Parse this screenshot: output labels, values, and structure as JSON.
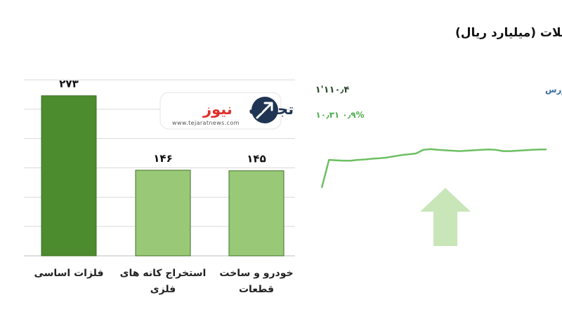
{
  "chart_title": "صنایع فرابورس بیشترین ارزش معاملات  (میلیارد ریال)",
  "logo": {
    "name_part1": "تجارت",
    "name_part2": "نیوز",
    "url": "www.tejaratnews.com",
    "colors": {
      "dark": "#1f3553",
      "accent": "#e0302a"
    }
  },
  "chart_data": {
    "type": "bar",
    "categories": [
      "فلزات اساسی",
      "استخراج کانه های فلزی",
      "خودرو و ساخت قطعات"
    ],
    "category_lines": [
      [
        "فلزات اساسی"
      ],
      [
        "استخراج کانه های",
        "فلزی"
      ],
      [
        "خودرو و ساخت",
        "قطعات"
      ]
    ],
    "values": [
      273,
      146,
      145
    ],
    "value_labels": [
      "۲۷۳",
      "۱۴۶",
      "۱۴۵"
    ],
    "ylim": [
      0,
      300
    ],
    "grid": true,
    "colors": {
      "first_bar": "#4d8b2f",
      "other_bars": "#99c977",
      "bar_stroke": "#3f6f26",
      "grid": "#d9d9d9"
    }
  },
  "market": {
    "title": "کل فرابورس",
    "index_value": "۱'۱۱۰٫۴",
    "change_text": "۱۰٫۳۱  ۰٫۹%",
    "trend": "up",
    "sparkline": [
      0.0,
      0.7,
      0.69,
      0.68,
      0.68,
      0.7,
      0.71,
      0.73,
      0.74,
      0.76,
      0.79,
      0.82,
      0.84,
      0.86,
      0.95,
      0.97,
      0.95,
      0.94,
      0.93,
      0.92,
      0.93,
      0.94,
      0.95,
      0.96,
      0.95,
      0.92,
      0.92,
      0.93,
      0.94,
      0.95,
      0.96,
      0.96
    ],
    "colors": {
      "line": "#6cbf62",
      "arrow": "#c8e6b8",
      "title": "#3a6ea5"
    }
  }
}
